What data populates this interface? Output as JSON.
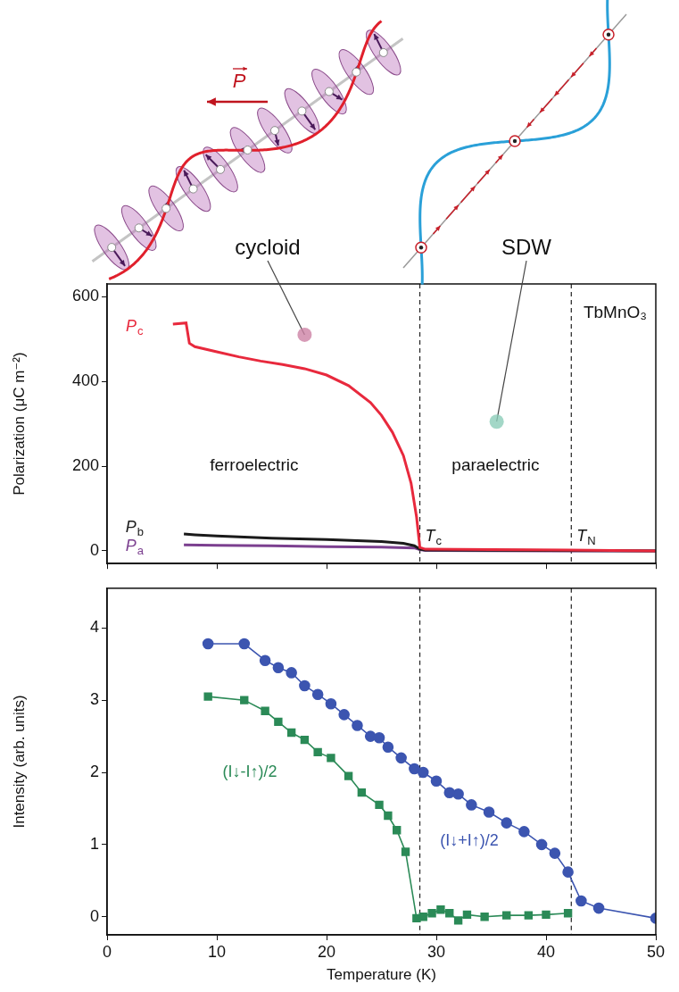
{
  "chart_data": [
    {
      "type": "line",
      "y_label": "Polarization (μC m⁻²)",
      "xlim": [
        0,
        50
      ],
      "xticks": [
        0,
        10,
        20,
        30,
        40,
        50
      ],
      "ylim": [
        -30,
        630
      ],
      "yticks": [
        0,
        200,
        400,
        600
      ],
      "tick_labels": "y",
      "grid": false,
      "series": [
        {
          "name": "Pc",
          "color": "#e8293d",
          "x": [
            6,
            7.2,
            7.5,
            8,
            10,
            12,
            14,
            16,
            18,
            20,
            22,
            24,
            25,
            26,
            27,
            27.7,
            28.2,
            28.5,
            29,
            35,
            42,
            50
          ],
          "values": [
            535,
            538,
            490,
            482,
            470,
            458,
            448,
            440,
            430,
            415,
            390,
            350,
            320,
            280,
            225,
            160,
            80,
            8,
            4,
            3,
            2,
            0
          ]
        },
        {
          "name": "Pb",
          "color": "#1a1a1a",
          "x": [
            7,
            8,
            10,
            15,
            20,
            25,
            27,
            28,
            28.5,
            29,
            40,
            50
          ],
          "values": [
            40,
            38,
            35,
            30,
            27,
            22,
            18,
            12,
            4,
            2,
            1,
            0
          ]
        },
        {
          "name": "Pa",
          "color": "#7b3f8f",
          "x": [
            7,
            10,
            15,
            20,
            25,
            28,
            28.5,
            29,
            40,
            50
          ],
          "values": [
            14,
            13,
            12,
            10,
            9,
            7,
            3,
            1,
            0,
            0
          ]
        }
      ],
      "annotations": [
        "ferroelectric",
        "paraelectric",
        "TbMnO₃"
      ],
      "vlines": [
        {
          "x": 28.5,
          "label": "Tc"
        },
        {
          "x": 42.3,
          "label": "TN"
        }
      ],
      "insets": [
        {
          "label": "cycloid",
          "vector_label": "P",
          "dot": [
            18,
            510
          ]
        },
        {
          "label": "SDW",
          "dot": [
            35.5,
            305
          ]
        }
      ]
    },
    {
      "type": "line",
      "x_label": "Temperature (K)",
      "y_label": "Intensity (arb. units)",
      "xlim": [
        0,
        50
      ],
      "xticks": [
        0,
        10,
        20,
        30,
        40,
        50
      ],
      "ylim": [
        -0.25,
        4.55
      ],
      "yticks": [
        0,
        1,
        2,
        3,
        4
      ],
      "grid": false,
      "series": [
        {
          "name": "(I↓+I↑)/2",
          "color": "#3c55b0",
          "marker": "circle",
          "x": [
            9.2,
            12.5,
            14.4,
            15.6,
            16.8,
            18,
            19.2,
            20.4,
            21.6,
            22.8,
            24,
            24.8,
            25.6,
            26.8,
            28,
            28.8,
            30,
            31.2,
            32,
            33.2,
            34.8,
            36.4,
            38,
            39.6,
            40.8,
            42,
            43.2,
            44.8,
            50
          ],
          "values": [
            3.78,
            3.78,
            3.55,
            3.45,
            3.38,
            3.2,
            3.08,
            2.95,
            2.8,
            2.65,
            2.5,
            2.48,
            2.35,
            2.2,
            2.05,
            2.0,
            1.88,
            1.72,
            1.7,
            1.55,
            1.45,
            1.3,
            1.18,
            1.0,
            0.88,
            0.62,
            0.22,
            0.12,
            -0.02
          ]
        },
        {
          "name": "(I↓-I↑)/2",
          "color": "#2b8a57",
          "marker": "square",
          "x": [
            9.2,
            12.5,
            14.4,
            15.6,
            16.8,
            18,
            19.2,
            20.4,
            22,
            23.2,
            24.8,
            25.6,
            26.4,
            27.2,
            28.2,
            28.8,
            29.6,
            30.4,
            31.2,
            32,
            32.8,
            34.4,
            36.4,
            38.4,
            40,
            42
          ],
          "values": [
            3.05,
            3.0,
            2.85,
            2.7,
            2.55,
            2.45,
            2.28,
            2.2,
            1.95,
            1.72,
            1.55,
            1.4,
            1.2,
            0.9,
            -0.02,
            0.0,
            0.05,
            0.1,
            0.05,
            -0.05,
            0.03,
            0.0,
            0.02,
            0.02,
            0.03,
            0.05
          ]
        }
      ],
      "vlines": [
        {
          "x": 28.5
        },
        {
          "x": 42.3
        }
      ]
    }
  ]
}
